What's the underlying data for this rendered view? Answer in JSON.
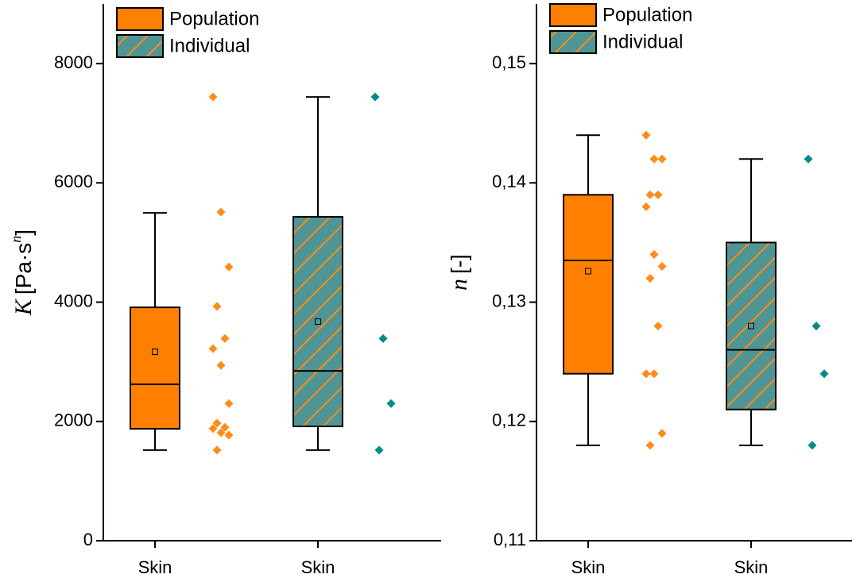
{
  "chart_data": [
    {
      "type": "box",
      "y_label": {
        "symbol": "K",
        "text": "[Pa·s",
        "superscript": "n",
        "close": "]"
      },
      "categories": [
        "Skin",
        "Skin"
      ],
      "ylim": [
        0,
        9000
      ],
      "yticks": [
        0,
        2000,
        4000,
        6000,
        8000
      ],
      "series": [
        {
          "name": "Population",
          "color": "#ff7f00",
          "point_color": "#ff8c1a",
          "whisker_low": 1520,
          "q1": 1877,
          "median": 2622,
          "q3": 3913,
          "whisker_high": 5497,
          "mean": 3168,
          "points": [
            7440,
            5510,
            4590,
            3930,
            3390,
            3220,
            2940,
            2300,
            1970,
            1900,
            1880,
            1810,
            1770,
            1520
          ]
        },
        {
          "name": "Individual",
          "color": "#4f9595",
          "hatch_color": "#ff8c1a",
          "point_color": "#008b8b",
          "whisker_low": 1520,
          "q1": 1917,
          "median": 2848,
          "q3": 5431,
          "whisker_high": 7440,
          "mean": 3674,
          "points": [
            7440,
            3390,
            2300,
            1520
          ]
        }
      ]
    },
    {
      "type": "box",
      "y_label": {
        "symbol": "n",
        "text": "[-]"
      },
      "categories": [
        "Skin",
        "Skin"
      ],
      "ylim": [
        0.11,
        0.155
      ],
      "yticks": [
        {
          "value": 0.11,
          "label": "0,11"
        },
        {
          "value": 0.12,
          "label": "0,12"
        },
        {
          "value": 0.13,
          "label": "0,13"
        },
        {
          "value": 0.14,
          "label": "0,14"
        },
        {
          "value": 0.15,
          "label": "0,15"
        }
      ],
      "series": [
        {
          "name": "Population",
          "color": "#ff7f00",
          "point_color": "#ff8c1a",
          "whisker_low": 0.118,
          "q1": 0.124,
          "median": 0.1335,
          "q3": 0.139,
          "whisker_high": 0.144,
          "mean": 0.1326,
          "points": [
            0.144,
            0.142,
            0.142,
            0.139,
            0.139,
            0.138,
            0.134,
            0.133,
            0.132,
            0.128,
            0.124,
            0.124,
            0.119,
            0.118
          ]
        },
        {
          "name": "Individual",
          "color": "#4f9595",
          "hatch_color": "#ff8c1a",
          "point_color": "#008b8b",
          "whisker_low": 0.118,
          "q1": 0.121,
          "median": 0.126,
          "q3": 0.135,
          "whisker_high": 0.142,
          "mean": 0.128,
          "points": [
            0.142,
            0.128,
            0.124,
            0.118
          ]
        }
      ]
    }
  ]
}
